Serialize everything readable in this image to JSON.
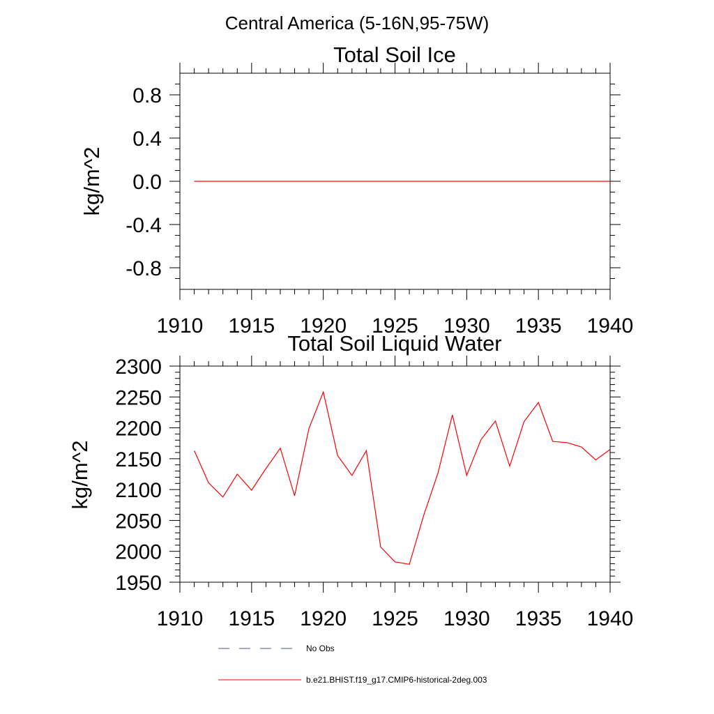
{
  "figure": {
    "suptitle": "Central America (5-16N,95-75W)"
  },
  "chart_data": [
    {
      "type": "line",
      "title": "Total Soil Ice",
      "xlabel": "",
      "ylabel": "kg/m^2",
      "xlim": [
        1910,
        1940
      ],
      "ylim": [
        -1,
        1
      ],
      "xticks": [
        1910,
        1915,
        1920,
        1925,
        1930,
        1935,
        1940
      ],
      "yticks": [
        -0.8,
        -0.4,
        0.0,
        0.4,
        0.8
      ],
      "ytick_labels": [
        "-0.8",
        "-0.4",
        "0.0",
        "0.4",
        "0.8"
      ],
      "series": [
        {
          "name": "b.e21.BHIST.f19_g17.CMIP6-historical-2deg.003",
          "color": "#ff0000",
          "x": [
            1911,
            1912,
            1913,
            1914,
            1915,
            1916,
            1917,
            1918,
            1919,
            1920,
            1921,
            1922,
            1923,
            1924,
            1925,
            1926,
            1927,
            1928,
            1929,
            1930,
            1931,
            1932,
            1933,
            1934,
            1935,
            1936,
            1937,
            1938,
            1939,
            1940
          ],
          "values": [
            0,
            0,
            0,
            0,
            0,
            0,
            0,
            0,
            0,
            0,
            0,
            0,
            0,
            0,
            0,
            0,
            0,
            0,
            0,
            0,
            0,
            0,
            0,
            0,
            0,
            0,
            0,
            0,
            0,
            0
          ]
        }
      ]
    },
    {
      "type": "line",
      "title": "Total Soil Liquid Water",
      "xlabel": "",
      "ylabel": "kg/m^2",
      "xlim": [
        1910,
        1940
      ],
      "ylim": [
        1950,
        2300
      ],
      "xticks": [
        1910,
        1915,
        1920,
        1925,
        1930,
        1935,
        1940
      ],
      "yticks": [
        1950,
        2000,
        2050,
        2100,
        2150,
        2200,
        2250,
        2300
      ],
      "ytick_labels": [
        "1950",
        "2000",
        "2050",
        "2100",
        "2150",
        "2200",
        "2250",
        "2300"
      ],
      "series": [
        {
          "name": "b.e21.BHIST.f19_g17.CMIP6-historical-2deg.003",
          "color": "#ff0000",
          "x": [
            1911,
            1912,
            1913,
            1914,
            1915,
            1916,
            1917,
            1918,
            1919,
            1920,
            1921,
            1922,
            1923,
            1924,
            1925,
            1926,
            1927,
            1928,
            1929,
            1930,
            1931,
            1932,
            1933,
            1934,
            1935,
            1936,
            1937,
            1938,
            1939,
            1940
          ],
          "values": [
            2163,
            2111,
            2088,
            2125,
            2099,
            2134,
            2167,
            2090,
            2199,
            2258,
            2155,
            2123,
            2163,
            2007,
            1983,
            1979,
            2058,
            2127,
            2221,
            2123,
            2181,
            2211,
            2138,
            2210,
            2241,
            2178,
            2176,
            2169,
            2148,
            2165
          ]
        }
      ]
    }
  ],
  "legend": [
    {
      "label": "No Obs",
      "style": "dashed",
      "color": "#4a5a8a"
    },
    {
      "label": "b.e21.BHIST.f19_g17.CMIP6-historical-2deg.003",
      "style": "solid",
      "color": "#ff0000"
    }
  ]
}
